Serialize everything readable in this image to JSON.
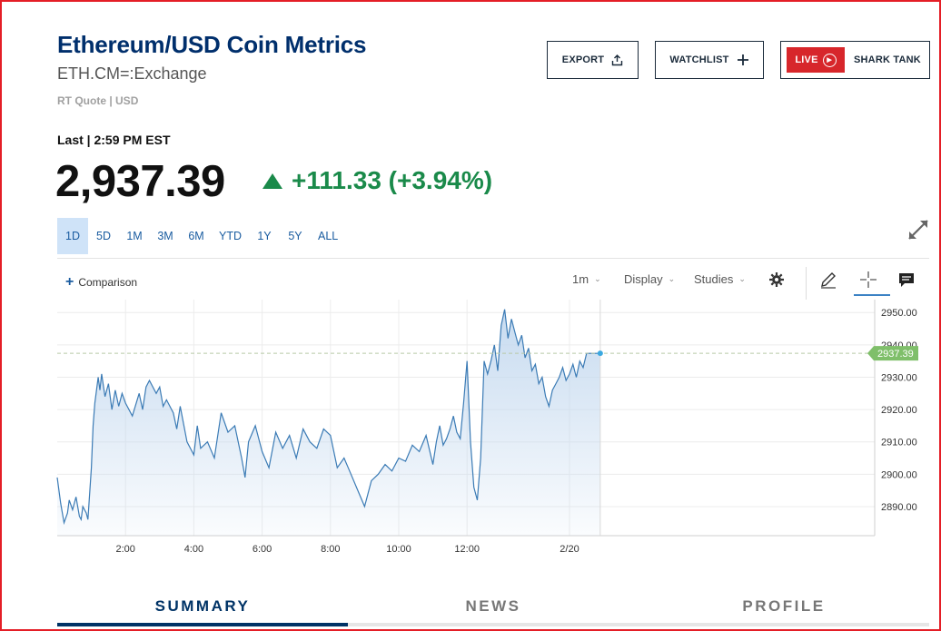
{
  "header": {
    "title": "Ethereum/USD Coin Metrics",
    "symbol": "ETH.CM=:Exchange",
    "quote_meta": "RT Quote | USD"
  },
  "actions": {
    "export_label": "EXPORT",
    "watchlist_label": "WATCHLIST",
    "live_label": "LIVE",
    "show_label": "SHARK TANK"
  },
  "quote": {
    "last_label": "Last | 2:59 PM EST",
    "price": "2,937.39",
    "change": "+111.33 (+3.94%)"
  },
  "ranges": [
    "1D",
    "5D",
    "1M",
    "3M",
    "6M",
    "YTD",
    "1Y",
    "5Y",
    "ALL"
  ],
  "active_range": "1D",
  "toolbar": {
    "comparison_label": "Comparison",
    "interval_label": "1m",
    "display_label": "Display",
    "studies_label": "Studies"
  },
  "tabs": [
    "SUMMARY",
    "NEWS",
    "PROFILE"
  ],
  "active_tab": "SUMMARY",
  "colors": {
    "brand_navy": "#002f6c",
    "up_green": "#1a8a4a",
    "live_red": "#d7262b",
    "series_line": "#3b7bb5",
    "area_fill": "#c4d9ef",
    "price_tag": "#7fbf6a"
  },
  "chart_data": {
    "type": "area",
    "title": "",
    "xlabel": "",
    "ylabel": "",
    "x_ticks": [
      "2:00",
      "4:00",
      "6:00",
      "8:00",
      "10:00",
      "12:00",
      "2/20"
    ],
    "y_ticks": [
      2890.0,
      2900.0,
      2910.0,
      2920.0,
      2930.0,
      2940.0,
      2950.0
    ],
    "ylim": [
      2881,
      2954
    ],
    "last_price_tag": "2937.39",
    "last_price": 2937.39,
    "grid": true,
    "series": [
      {
        "x_hours": [
          0.0,
          0.1,
          0.2,
          0.3,
          0.35,
          0.45,
          0.55,
          0.65,
          0.7,
          0.75,
          0.85,
          0.9,
          1.0,
          1.05,
          1.1,
          1.2,
          1.25,
          1.3,
          1.4,
          1.5,
          1.6,
          1.7,
          1.8,
          1.9,
          2.0,
          2.2,
          2.4,
          2.5,
          2.6,
          2.7,
          2.9,
          3.0,
          3.1,
          3.2,
          3.4,
          3.5,
          3.6,
          3.8,
          4.0,
          4.1,
          4.2,
          4.4,
          4.6,
          4.8,
          5.0,
          5.2,
          5.4,
          5.5,
          5.6,
          5.8,
          6.0,
          6.2,
          6.4,
          6.6,
          6.8,
          7.0,
          7.2,
          7.4,
          7.6,
          7.8,
          8.0,
          8.2,
          8.4,
          8.6,
          8.8,
          9.0,
          9.2,
          9.4,
          9.6,
          9.8,
          10.0,
          10.2,
          10.4,
          10.6,
          10.8,
          11.0,
          11.1,
          11.2,
          11.3,
          11.4,
          11.5,
          11.6,
          11.7,
          11.8,
          11.9,
          12.0,
          12.1,
          12.2,
          12.3,
          12.4,
          12.5,
          12.6,
          12.7,
          12.8,
          12.9,
          13.0,
          13.1,
          13.2,
          13.3,
          13.4,
          13.5,
          13.6,
          13.7,
          13.8,
          13.9,
          14.0,
          14.1,
          14.2,
          14.3,
          14.4,
          14.5,
          14.6,
          14.7,
          14.8,
          14.9,
          15.0,
          15.1,
          15.2,
          15.3,
          15.4,
          15.5,
          15.6,
          15.7,
          15.8,
          15.9,
          16.0
        ],
        "values": [
          2899,
          2891,
          2885,
          2888,
          2892,
          2889,
          2893,
          2887,
          2886,
          2890,
          2888,
          2886,
          2902,
          2915,
          2922,
          2930,
          2926,
          2931,
          2924,
          2928,
          2920,
          2926,
          2921,
          2925,
          2922,
          2918,
          2925,
          2920,
          2927,
          2929,
          2925,
          2927,
          2921,
          2923,
          2919,
          2914,
          2921,
          2910,
          2906,
          2915,
          2908,
          2910,
          2905,
          2919,
          2913,
          2915,
          2905,
          2899,
          2910,
          2915,
          2907,
          2902,
          2913,
          2908,
          2912,
          2905,
          2914,
          2910,
          2908,
          2914,
          2912,
          2902,
          2905,
          2900,
          2895,
          2890,
          2898,
          2900,
          2903,
          2901,
          2905,
          2904,
          2909,
          2907,
          2912,
          2903,
          2910,
          2915,
          2909,
          2911,
          2914,
          2918,
          2913,
          2911,
          2922,
          2935,
          2910,
          2896,
          2892,
          2905,
          2935,
          2931,
          2935,
          2940,
          2932,
          2946,
          2951,
          2942,
          2948,
          2944,
          2940,
          2943,
          2936,
          2939,
          2932,
          2934,
          2928,
          2930,
          2924,
          2921,
          2926,
          2928,
          2930,
          2933,
          2929,
          2931,
          2934,
          2930,
          2935,
          2933,
          2937.39,
          2937.39,
          2937.39,
          2937.39,
          2937.39,
          2937.39
        ]
      }
    ]
  }
}
